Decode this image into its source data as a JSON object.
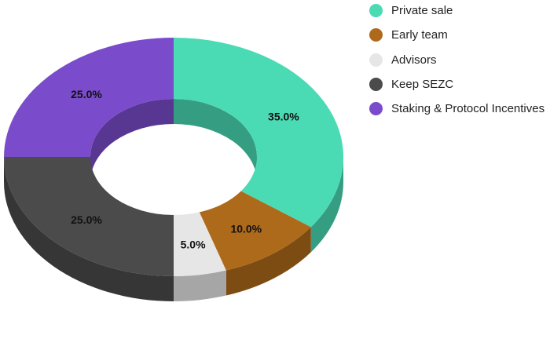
{
  "chart_data": {
    "type": "pie",
    "style": "3d-donut",
    "categories": [
      "Private sale",
      "Early team",
      "Advisors",
      "Keep SEZC",
      "Staking & Protocol Incentives"
    ],
    "values": [
      35.0,
      10.0,
      5.0,
      25.0,
      25.0
    ],
    "labels": [
      "35.0%",
      "10.0%",
      "5.0%",
      "25.0%",
      "25.0%"
    ],
    "colors": [
      "#4ADBB5",
      "#AE6A1B",
      "#E6E6E6",
      "#4B4B4B",
      "#7A4CCB"
    ],
    "legend_position": "top-right"
  }
}
